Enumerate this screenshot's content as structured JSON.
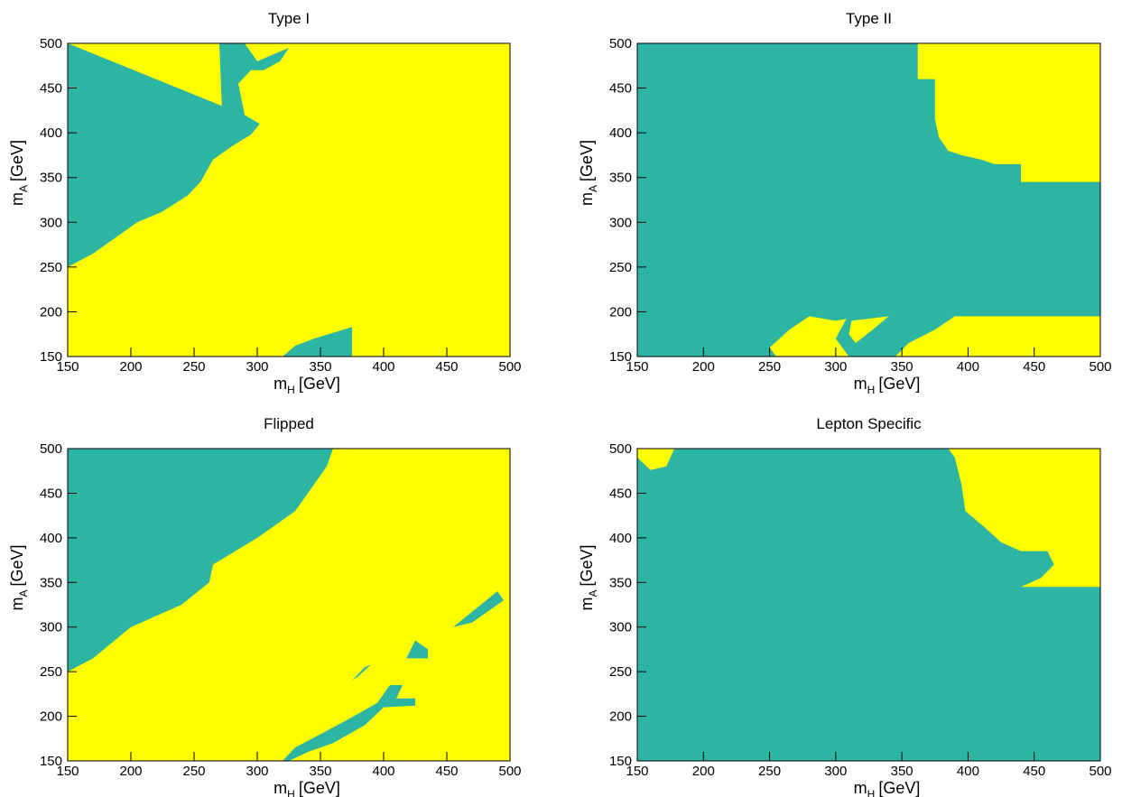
{
  "chart_data": [
    {
      "type": "region",
      "title": "Type I",
      "xlabel": {
        "main": "m",
        "sub": "H",
        "unit": "[GeV]"
      },
      "ylabel": {
        "main": "m",
        "sub": "A",
        "unit": "[GeV]"
      },
      "xlim": [
        150,
        500
      ],
      "ylim": [
        150,
        500
      ],
      "xticks": [
        150,
        200,
        250,
        300,
        350,
        400,
        450,
        500
      ],
      "yticks": [
        150,
        200,
        250,
        300,
        350,
        400,
        450,
        500
      ],
      "background": "#ffff00",
      "regions": [
        {
          "color": "#2db5a3",
          "x": [
            150,
            170,
            190,
            205,
            225,
            245,
            255,
            265,
            280,
            295,
            302,
            290,
            285,
            295,
            305,
            318,
            325,
            300,
            290,
            283,
            270,
            272,
            150
          ],
          "y": [
            250,
            265,
            285,
            300,
            312,
            330,
            345,
            370,
            385,
            398,
            410,
            420,
            455,
            470,
            470,
            480,
            495,
            480,
            500,
            500,
            500,
            430,
            500
          ]
        },
        {
          "color": "#2db5a3",
          "x": [
            320,
            330,
            345,
            375,
            375
          ],
          "y": [
            150,
            162,
            170,
            183,
            150
          ]
        }
      ]
    },
    {
      "type": "region",
      "title": "Type II",
      "xlabel": {
        "main": "m",
        "sub": "H",
        "unit": "[GeV]"
      },
      "ylabel": {
        "main": "m",
        "sub": "A",
        "unit": "[GeV]"
      },
      "xlim": [
        150,
        500
      ],
      "ylim": [
        150,
        500
      ],
      "xticks": [
        150,
        200,
        250,
        300,
        350,
        400,
        450,
        500
      ],
      "yticks": [
        150,
        200,
        250,
        300,
        350,
        400,
        450,
        500
      ],
      "background": "#2db5a3",
      "regions": [
        {
          "color": "#ffff00",
          "x": [
            362,
            500,
            500,
            440,
            440,
            420,
            410,
            395,
            385,
            378,
            375,
            375,
            362
          ],
          "y": [
            500,
            500,
            345,
            345,
            365,
            365,
            370,
            375,
            380,
            395,
            415,
            460,
            460
          ]
        },
        {
          "color": "#ffff00",
          "x": [
            390,
            500,
            500,
            345,
            355,
            375
          ],
          "y": [
            195,
            195,
            150,
            150,
            165,
            180
          ]
        },
        {
          "color": "#ffff00",
          "x": [
            250,
            265,
            280,
            300,
            308,
            300,
            310,
            255
          ],
          "y": [
            160,
            180,
            195,
            190,
            192,
            170,
            150,
            150
          ]
        },
        {
          "color": "#ffff00",
          "x": [
            312,
            340,
            328,
            315,
            310
          ],
          "y": [
            190,
            195,
            180,
            165,
            175
          ]
        }
      ]
    },
    {
      "type": "region",
      "title": "Flipped",
      "xlabel": {
        "main": "m",
        "sub": "H",
        "unit": "[GeV]"
      },
      "ylabel": {
        "main": "m",
        "sub": "A",
        "unit": "[GeV]"
      },
      "xlim": [
        150,
        500
      ],
      "ylim": [
        150,
        500
      ],
      "xticks": [
        150,
        200,
        250,
        300,
        350,
        400,
        450,
        500
      ],
      "yticks": [
        150,
        200,
        250,
        300,
        350,
        400,
        450,
        500
      ],
      "background": "#ffff00",
      "regions": [
        {
          "color": "#2db5a3",
          "x": [
            150,
            170,
            200,
            240,
            262,
            265,
            300,
            330,
            345,
            350,
            355,
            360,
            150
          ],
          "y": [
            250,
            265,
            300,
            325,
            350,
            370,
            400,
            430,
            460,
            470,
            480,
            500,
            500
          ]
        },
        {
          "color": "#2db5a3",
          "x": [
            320,
            330,
            350,
            370,
            395,
            405,
            415,
            410,
            425,
            425,
            400,
            385,
            360,
            340,
            325
          ],
          "y": [
            150,
            165,
            180,
            195,
            215,
            235,
            235,
            220,
            220,
            212,
            210,
            190,
            170,
            160,
            150
          ]
        },
        {
          "color": "#2db5a3",
          "x": [
            375,
            385,
            390,
            380
          ],
          "y": [
            240,
            255,
            258,
            245
          ]
        },
        {
          "color": "#2db5a3",
          "x": [
            418,
            425,
            435,
            435
          ],
          "y": [
            265,
            285,
            275,
            265
          ]
        },
        {
          "color": "#2db5a3",
          "x": [
            455,
            490,
            495,
            470
          ],
          "y": [
            300,
            340,
            330,
            305
          ]
        }
      ]
    },
    {
      "type": "region",
      "title": "Lepton Specific",
      "xlabel": {
        "main": "m",
        "sub": "H",
        "unit": "[GeV]"
      },
      "ylabel": {
        "main": "m",
        "sub": "A",
        "unit": "[GeV]"
      },
      "xlim": [
        150,
        500
      ],
      "ylim": [
        150,
        500
      ],
      "xticks": [
        150,
        200,
        250,
        300,
        350,
        400,
        450,
        500
      ],
      "yticks": [
        150,
        200,
        250,
        300,
        350,
        400,
        450,
        500
      ],
      "background": "#2db5a3",
      "regions": [
        {
          "color": "#ffff00",
          "x": [
            150,
            178,
            172,
            160,
            150
          ],
          "y": [
            500,
            500,
            480,
            476,
            490
          ]
        },
        {
          "color": "#ffff00",
          "x": [
            385,
            500,
            500,
            440,
            455,
            465,
            460,
            440,
            425,
            410,
            398,
            395,
            390
          ],
          "y": [
            500,
            500,
            345,
            345,
            355,
            370,
            385,
            385,
            395,
            415,
            430,
            460,
            490
          ]
        }
      ]
    }
  ]
}
